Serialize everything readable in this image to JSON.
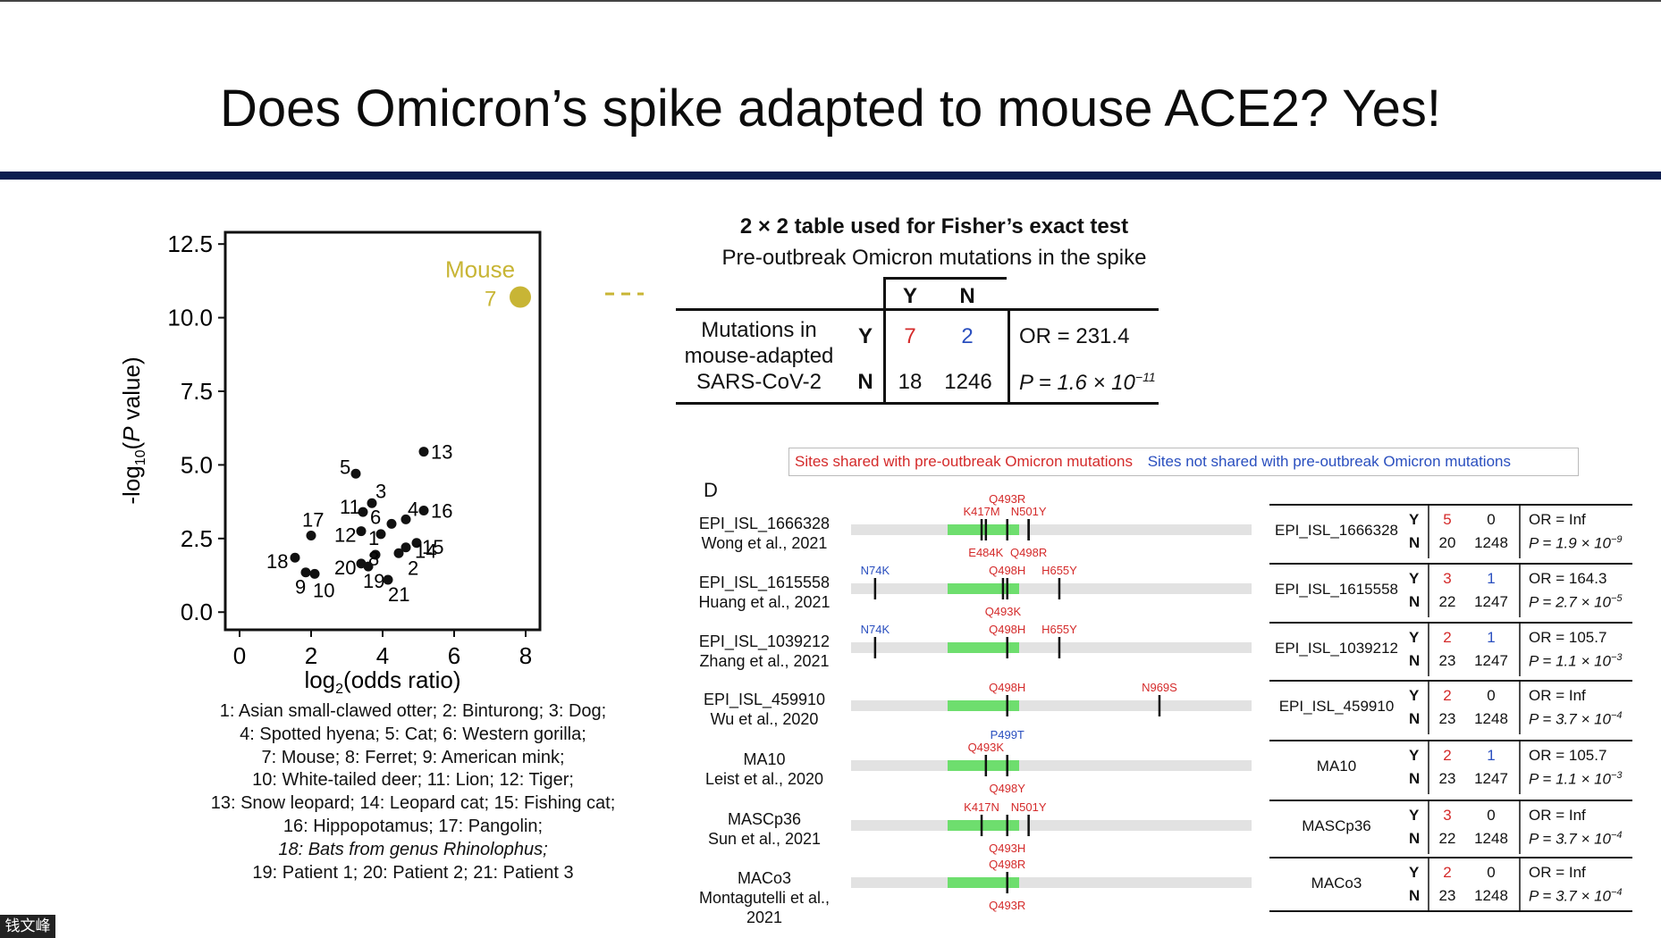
{
  "slide": {
    "title": "Does Omicron’s spike adapted to mouse ACE2? Yes!"
  },
  "colors": {
    "red": "#d42a2a",
    "blue": "#2a4fbf",
    "mouse": "#c8b535",
    "green": "#6ede6e",
    "rule": "#0d1f4f"
  },
  "chart_data": {
    "type": "scatter",
    "xlabel": "log2(odds ratio)",
    "ylabel": "-log10(P value)",
    "xlim": [
      -0.4,
      8.4
    ],
    "ylim": [
      -0.6,
      12.9
    ],
    "xticks": [
      "0",
      "2",
      "4",
      "6",
      "8"
    ],
    "yticks": [
      "0.0",
      "2.5",
      "5.0",
      "7.5",
      "10.0",
      "12.5"
    ],
    "highlight": {
      "label": "Mouse",
      "id": "7",
      "x": 7.85,
      "y": 10.7
    },
    "points": [
      {
        "id": "13",
        "x": 5.15,
        "y": 5.45
      },
      {
        "id": "5",
        "x": 3.25,
        "y": 4.7
      },
      {
        "id": "3",
        "x": 3.7,
        "y": 3.7
      },
      {
        "id": "11",
        "x": 3.45,
        "y": 3.4
      },
      {
        "id": "6",
        "x": 4.25,
        "y": 3.0
      },
      {
        "id": "4",
        "x": 4.65,
        "y": 3.15
      },
      {
        "id": "16",
        "x": 5.15,
        "y": 3.45
      },
      {
        "id": "12",
        "x": 3.4,
        "y": 2.75
      },
      {
        "id": "1",
        "x": 3.95,
        "y": 2.65
      },
      {
        "id": "15",
        "x": 4.95,
        "y": 2.35
      },
      {
        "id": "17",
        "x": 2.0,
        "y": 2.6
      },
      {
        "id": "18",
        "x": 1.55,
        "y": 1.85
      },
      {
        "id": "9",
        "x": 1.85,
        "y": 1.35
      },
      {
        "id": "10",
        "x": 2.1,
        "y": 1.3
      },
      {
        "id": "8",
        "x": 3.8,
        "y": 1.95
      },
      {
        "id": "20",
        "x": 3.4,
        "y": 1.65
      },
      {
        "id": "19",
        "x": 3.6,
        "y": 1.55
      },
      {
        "id": "21",
        "x": 4.15,
        "y": 1.1
      },
      {
        "id": "14",
        "x": 4.65,
        "y": 2.2
      },
      {
        "id": "2",
        "x": 4.45,
        "y": 2.0
      }
    ]
  },
  "species_key": [
    "1: Asian small-clawed otter; 2: Binturong; 3: Dog;",
    "4: Spotted hyena; 5: Cat; 6: Western gorilla;",
    "7: Mouse; 8: Ferret; 9: American mink;",
    "10: White-tailed deer; 11: Lion; 12: Tiger;",
    "13: Snow leopard; 14: Leopard cat; 15: Fishing cat;",
    "16: Hippopotamus; 17: Pangolin;",
    "18: Bats from genus Rhinolophus;",
    "19: Patient 1; 20: Patient 2; 21: Patient 3"
  ],
  "fisher": {
    "title": "2 × 2 table used for Fisher’s exact test",
    "subtitle": "Pre-outbreak Omicron mutations in the spike",
    "col_y": "Y",
    "col_n": "N",
    "row_label": [
      "Mutations in",
      "mouse-adapted",
      "SARS-CoV-2"
    ],
    "row_y": "Y",
    "row_n": "N",
    "yy": "7",
    "yn": "2",
    "ny": "18",
    "nn": "1246",
    "or": "OR = 231.4",
    "p": "P = 1.6 × 10",
    "p_exp": "−11"
  },
  "panel_d": {
    "label": "D",
    "legend_shared": "Sites shared with pre-outbreak Omicron mutations",
    "legend_not_shared": "Sites not shared with pre-outbreak Omicron mutations",
    "strains": [
      {
        "name": "EPI_ISL_1666328",
        "ref": "Wong et al., 2021",
        "y": "5",
        "y2": "0",
        "n": "20",
        "n2": "1248",
        "or": "OR = Inf",
        "p": "P = 1.9 × 10",
        "pexp": "−9",
        "muts": [
          {
            "t": "K417M",
            "c": "r",
            "x": 0.33,
            "pos": "a"
          },
          {
            "t": "Q493R",
            "c": "r",
            "x": 0.39,
            "pos": "a2"
          },
          {
            "t": "N501Y",
            "c": "r",
            "x": 0.44,
            "pos": "a"
          },
          {
            "t": "E484K",
            "c": "r",
            "x": 0.34,
            "pos": "b"
          },
          {
            "t": "Q498R",
            "c": "r",
            "x": 0.44,
            "pos": "b"
          }
        ]
      },
      {
        "name": "EPI_ISL_1615558",
        "ref": "Huang et al., 2021",
        "y": "3",
        "y2": "1",
        "n": "22",
        "n2": "1247",
        "or": "OR = 164.3",
        "p": "P = 2.7 × 10",
        "pexp": "−5",
        "muts": [
          {
            "t": "N74K",
            "c": "b",
            "x": 0.06,
            "pos": "a"
          },
          {
            "t": "Q498H",
            "c": "r",
            "x": 0.39,
            "pos": "a"
          },
          {
            "t": "H655Y",
            "c": "r",
            "x": 0.52,
            "pos": "a"
          },
          {
            "t": "Q493K",
            "c": "r",
            "x": 0.38,
            "pos": "b"
          }
        ]
      },
      {
        "name": "EPI_ISL_1039212",
        "ref": "Zhang et al., 2021",
        "y": "2",
        "y2": "1",
        "n": "23",
        "n2": "1247",
        "or": "OR = 105.7",
        "p": "P = 1.1 × 10",
        "pexp": "−3",
        "muts": [
          {
            "t": "N74K",
            "c": "b",
            "x": 0.06,
            "pos": "a"
          },
          {
            "t": "Q498H",
            "c": "r",
            "x": 0.39,
            "pos": "a"
          },
          {
            "t": "H655Y",
            "c": "r",
            "x": 0.52,
            "pos": "a"
          }
        ]
      },
      {
        "name": "EPI_ISL_459910",
        "ref": "Wu et al., 2020",
        "y": "2",
        "y2": "0",
        "n": "23",
        "n2": "1248",
        "or": "OR = Inf",
        "p": "P = 3.7 × 10",
        "pexp": "−4",
        "muts": [
          {
            "t": "Q498H",
            "c": "r",
            "x": 0.39,
            "pos": "a"
          },
          {
            "t": "N969S",
            "c": "r",
            "x": 0.77,
            "pos": "a"
          }
        ]
      },
      {
        "name": "MA10",
        "ref": "Leist et al., 2020",
        "y": "2",
        "y2": "1",
        "n": "23",
        "n2": "1247",
        "or": "OR = 105.7",
        "p": "P = 1.1 × 10",
        "pexp": "−3",
        "muts": [
          {
            "t": "P499T",
            "c": "b",
            "x": 0.39,
            "pos": "a2"
          },
          {
            "t": "Q493K",
            "c": "r",
            "x": 0.34,
            "pos": "a"
          },
          {
            "t": "Q498Y",
            "c": "r",
            "x": 0.39,
            "pos": "b"
          }
        ]
      },
      {
        "name": "MASCp36",
        "ref": "Sun et al., 2021",
        "y": "3",
        "y2": "0",
        "n": "22",
        "n2": "1248",
        "or": "OR = Inf",
        "p": "P = 3.7 × 10",
        "pexp": "−4",
        "muts": [
          {
            "t": "K417N",
            "c": "r",
            "x": 0.33,
            "pos": "a"
          },
          {
            "t": "N501Y",
            "c": "r",
            "x": 0.44,
            "pos": "a"
          },
          {
            "t": "Q493H",
            "c": "r",
            "x": 0.39,
            "pos": "b"
          }
        ]
      },
      {
        "name": "MACo3",
        "ref": "Montagutelli et al., 2021",
        "y": "2",
        "y2": "0",
        "n": "23",
        "n2": "1248",
        "or": "OR = Inf",
        "p": "P = 3.7 × 10",
        "pexp": "−4",
        "muts": [
          {
            "t": "Q498R",
            "c": "r",
            "x": 0.39,
            "pos": "a"
          },
          {
            "t": "Q493R",
            "c": "r",
            "x": 0.39,
            "pos": "b"
          }
        ]
      }
    ]
  },
  "footer": {
    "user": "钱文峰"
  }
}
